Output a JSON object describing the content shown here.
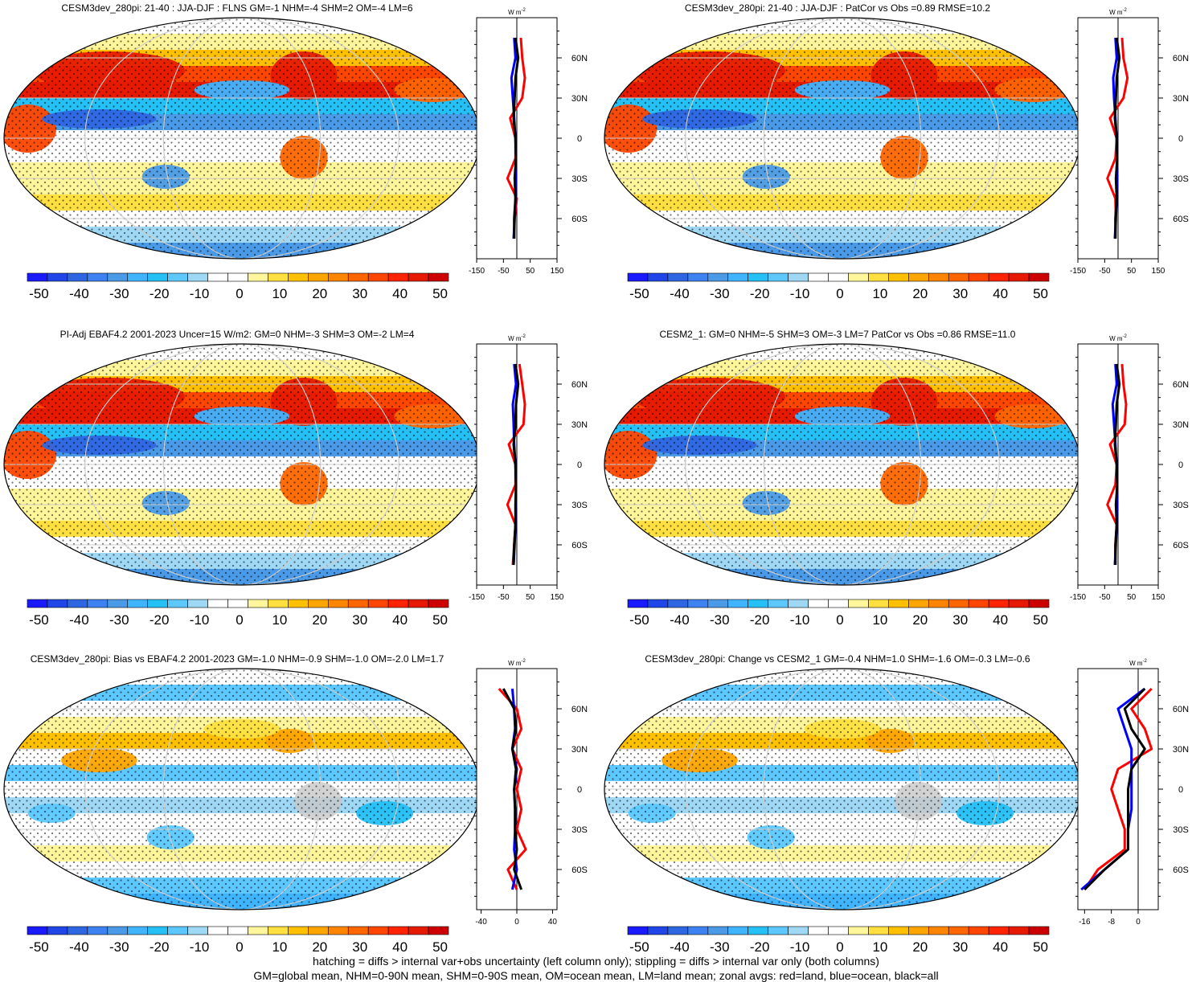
{
  "footer": {
    "line1": "hatching = diffs > internal var+obs uncertainty (left column only); stippling = diffs > internal var only (both columns)",
    "line2": "GM=global mean, NHM=0-90N mean, SHM=0-90S mean, OM=ocean mean, LM=land mean; zonal avgs: red=land, blue=ocean, black=all"
  },
  "colors": {
    "land_line": "#ff0000",
    "ocean_line": "#0000ff",
    "all_line": "#000000",
    "missing": "#c8c8c8",
    "colorbar": [
      "#1a1aff",
      "#2046e8",
      "#2e66e2",
      "#3d82f0",
      "#4a9ae8",
      "#40b4ff",
      "#25c0f5",
      "#5cc8ff",
      "#9fd8f5",
      "#ffffff",
      "#ffffff",
      "#fff59a",
      "#ffe040",
      "#ffc000",
      "#ffa500",
      "#ff8400",
      "#ff6600",
      "#ff4600",
      "#ff2400",
      "#e61a00",
      "#cc0000"
    ]
  },
  "colorbar_labels": [
    "-50",
    "-40",
    "-30",
    "-20",
    "-10",
    "0",
    "10",
    "20",
    "30",
    "40",
    "50"
  ],
  "zonal_header": "W m",
  "zonal_header_sup": "-2",
  "lat_labels": [
    "60N",
    "30N",
    "0",
    "30S",
    "60S"
  ],
  "chart_data": [
    {
      "type": "heatmap",
      "title": "CESM3dev_280pi: 21-40 : JJA-DJF : FLNS GM=-1 NHM=-4 SHM=2 OM=-4 LM=6",
      "ylabels": [
        "60N",
        "30N",
        "0",
        "30S",
        "60S"
      ],
      "xticks": [
        "-150",
        "-50",
        "50",
        "150"
      ],
      "xlim": [
        -150,
        150
      ],
      "zonal_lat": [
        -75,
        -60,
        -45,
        -30,
        -15,
        0,
        15,
        30,
        45,
        60,
        75
      ],
      "series": [
        {
          "name": "land",
          "values": [
            -10,
            -8,
            0,
            -35,
            -5,
            -5,
            -25,
            20,
            30,
            20,
            15
          ]
        },
        {
          "name": "ocean",
          "values": [
            -12,
            -8,
            -5,
            -5,
            -3,
            -5,
            -10,
            -15,
            -20,
            -5,
            -10
          ]
        },
        {
          "name": "all",
          "values": [
            -10,
            -10,
            -5,
            -8,
            -3,
            -5,
            -12,
            -8,
            -5,
            5,
            -5
          ]
        }
      ]
    },
    {
      "type": "heatmap",
      "title": "CESM3dev_280pi: 21-40 : JJA-DJF : PatCor vs Obs =0.89 RMSE=10.2",
      "ylabels": [
        "60N",
        "30N",
        "0",
        "30S",
        "60S"
      ],
      "xticks": [
        "-150",
        "-50",
        "50",
        "150"
      ],
      "xlim": [
        -150,
        150
      ],
      "zonal_lat": [
        -75,
        -60,
        -45,
        -30,
        -15,
        0,
        15,
        30,
        45,
        60,
        75
      ],
      "series": [
        {
          "name": "land",
          "values": [
            -10,
            -8,
            -10,
            -40,
            -10,
            -5,
            -30,
            20,
            35,
            20,
            15
          ]
        },
        {
          "name": "ocean",
          "values": [
            -12,
            -8,
            -5,
            -5,
            -3,
            -5,
            -10,
            -15,
            -18,
            -5,
            -10
          ]
        },
        {
          "name": "all",
          "values": [
            -10,
            -10,
            -5,
            -8,
            -3,
            -5,
            -12,
            -8,
            -5,
            5,
            -5
          ]
        }
      ]
    },
    {
      "type": "heatmap",
      "title": "PI-Adj EBAF4.2 2001-2023 Uncer=15 W/m2: GM=0 NHM=-3 SHM=3 OM=-2 LM=4",
      "ylabels": [
        "60N",
        "30N",
        "0",
        "30S",
        "60S"
      ],
      "xticks": [
        "-150",
        "-50",
        "50",
        "150"
      ],
      "xlim": [
        -150,
        150
      ],
      "zonal_lat": [
        -75,
        -60,
        -45,
        -30,
        -15,
        0,
        15,
        30,
        45,
        60,
        75
      ],
      "series": [
        {
          "name": "land",
          "values": [
            -15,
            -10,
            -5,
            -35,
            -5,
            -5,
            -30,
            25,
            30,
            20,
            10
          ]
        },
        {
          "name": "ocean",
          "values": [
            -12,
            -8,
            -5,
            -3,
            -3,
            -5,
            -10,
            -12,
            -15,
            -3,
            -10
          ]
        },
        {
          "name": "all",
          "values": [
            -12,
            -10,
            -5,
            -5,
            -3,
            -5,
            -12,
            -5,
            -3,
            5,
            -5
          ]
        }
      ]
    },
    {
      "type": "heatmap",
      "title": "CESM2_1: GM=0 NHM=-5 SHM=3 OM=-3 LM=7 PatCor vs Obs =0.86 RMSE=11.0",
      "ylabels": [
        "60N",
        "30N",
        "0",
        "30S",
        "60S"
      ],
      "xticks": [
        "-150",
        "-50",
        "50",
        "150"
      ],
      "xlim": [
        -150,
        150
      ],
      "zonal_lat": [
        -75,
        -60,
        -45,
        -30,
        -15,
        0,
        15,
        30,
        45,
        60,
        75
      ],
      "series": [
        {
          "name": "land",
          "values": [
            -10,
            -10,
            -5,
            -40,
            -10,
            -5,
            -30,
            25,
            30,
            20,
            15
          ]
        },
        {
          "name": "ocean",
          "values": [
            -12,
            -8,
            -5,
            -5,
            -3,
            -5,
            -10,
            -15,
            -20,
            -5,
            -10
          ]
        },
        {
          "name": "all",
          "values": [
            -10,
            -10,
            -5,
            -8,
            -3,
            -5,
            -12,
            -8,
            -5,
            5,
            -5
          ]
        }
      ]
    },
    {
      "type": "heatmap",
      "title": "CESM3dev_280pi: Bias vs EBAF4.2 2001-2023 GM=-1.0 NHM=-0.9 SHM=-1.0 OM=-2.0 LM=1.7",
      "ylabels": [
        "60N",
        "30N",
        "0",
        "30S",
        "60S"
      ],
      "xticks": [
        "-40",
        "0",
        "40"
      ],
      "xlim": [
        -45,
        45
      ],
      "zonal_lat": [
        -75,
        -60,
        -45,
        -30,
        -15,
        0,
        15,
        30,
        45,
        60,
        75
      ],
      "series": [
        {
          "name": "land",
          "values": [
            0,
            -10,
            10,
            0,
            5,
            0,
            5,
            -5,
            5,
            0,
            -20
          ]
        },
        {
          "name": "ocean",
          "values": [
            -5,
            0,
            -3,
            -2,
            -2,
            -3,
            0,
            -5,
            -2,
            -3,
            -5
          ]
        },
        {
          "name": "all",
          "values": [
            5,
            -3,
            0,
            -2,
            -2,
            -3,
            -1,
            -5,
            -1,
            -3,
            -15
          ]
        }
      ]
    },
    {
      "type": "heatmap",
      "title": "CESM3dev_280pi: Change vs CESM2_1 GM=-0.4 NHM=1.0 SHM=-1.6 OM=-0.3 LM=-0.6",
      "ylabels": [
        "60N",
        "30N",
        "0",
        "30S",
        "60S"
      ],
      "xticks": [
        "-16",
        "-8",
        "0"
      ],
      "xlim": [
        -18,
        6
      ],
      "zonal_lat": [
        -75,
        -60,
        -45,
        -30,
        -15,
        0,
        15,
        30,
        45,
        60,
        75
      ],
      "series": [
        {
          "name": "land",
          "values": [
            -16,
            -12,
            -4,
            -4,
            -6,
            -8,
            -6,
            4,
            2,
            -2,
            4
          ]
        },
        {
          "name": "ocean",
          "values": [
            -17,
            -10,
            -3,
            -3,
            -2,
            -2,
            -2,
            -2,
            -4,
            -6,
            2
          ]
        },
        {
          "name": "all",
          "values": [
            -16,
            -10,
            -3,
            -3,
            -3,
            -3,
            -2,
            2,
            -2,
            -4,
            2
          ]
        }
      ]
    }
  ]
}
